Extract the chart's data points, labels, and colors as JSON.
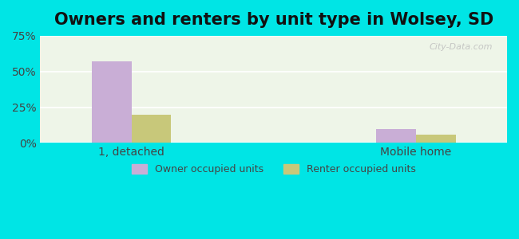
{
  "title": "Owners and renters by unit type in Wolsey, SD",
  "categories": [
    "1, detached",
    "Mobile home"
  ],
  "owner_values": [
    57,
    10
  ],
  "renter_values": [
    20,
    6
  ],
  "owner_color": "#c9aed6",
  "renter_color": "#c8c87a",
  "background_outer": "#00e5e5",
  "background_inner_left": "#f0f5e8",
  "background_inner_right": "#e8f5f0",
  "ylim": [
    0,
    75
  ],
  "yticks": [
    0,
    25,
    50,
    75
  ],
  "ytick_labels": [
    "0%",
    "25%",
    "50%",
    "75%"
  ],
  "bar_width": 0.35,
  "legend_labels": [
    "Owner occupied units",
    "Renter occupied units"
  ],
  "watermark": "City-Data.com",
  "title_fontsize": 15,
  "tick_fontsize": 10
}
